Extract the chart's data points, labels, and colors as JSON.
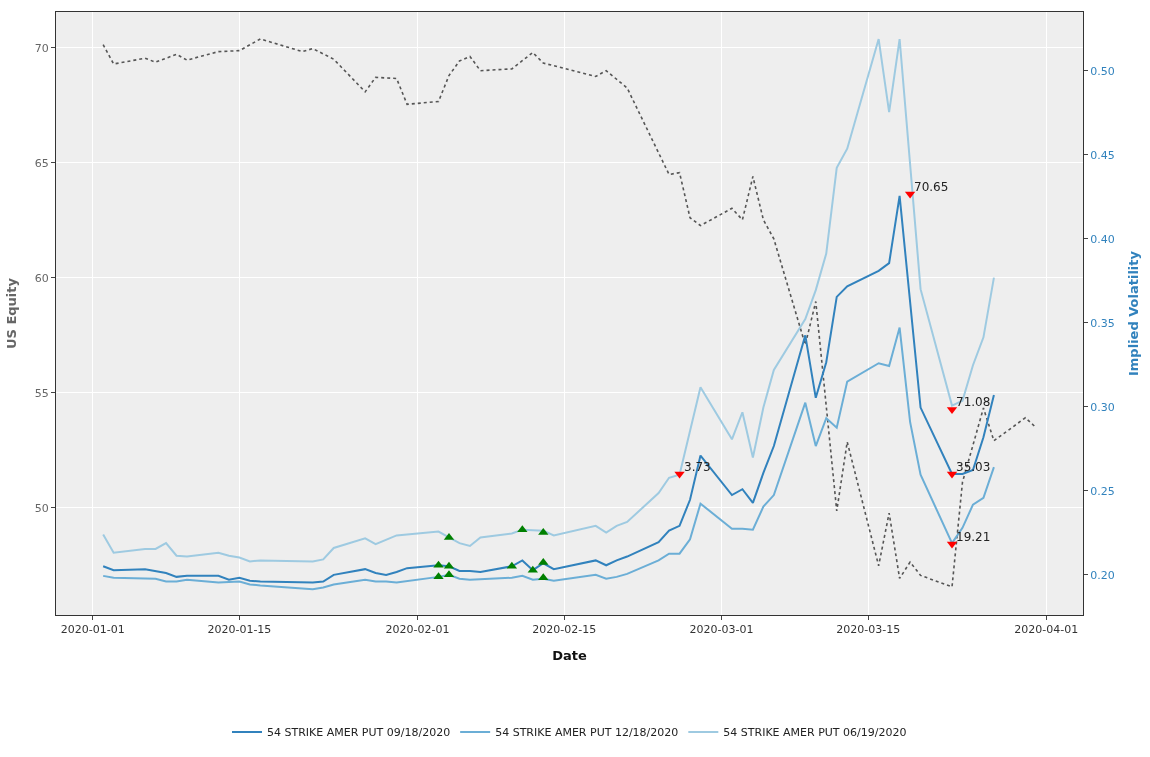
{
  "chart_data": {
    "type": "line",
    "xlabel": "Date",
    "ylabel": "US Equity",
    "y2label": "Implied Volatility",
    "xlim": [
      "2019-12-28T12:00",
      "2020-04-04T12:00"
    ],
    "xticks": [
      "2020-01-01",
      "2020-01-15",
      "2020-02-01",
      "2020-02-15",
      "2020-03-01",
      "2020-03-15",
      "2020-04-01"
    ],
    "ylim": [
      45.35,
      71.55
    ],
    "yticks": [
      50,
      55,
      60,
      65,
      70
    ],
    "y2lim": [
      0.176,
      0.535
    ],
    "y2ticks": [
      {
        "value": 0.2,
        "label": "0.20"
      },
      {
        "value": 0.25,
        "label": "0.25"
      },
      {
        "value": 0.3,
        "label": "0.30"
      },
      {
        "value": 0.35,
        "label": "0.35"
      },
      {
        "value": 0.4,
        "label": "0.40"
      },
      {
        "value": 0.45,
        "label": "0.45"
      },
      {
        "value": 0.5,
        "label": "0.50"
      }
    ],
    "grid": true,
    "legend": "bottom",
    "series": [
      {
        "color": "#555555",
        "line_style": "dotted",
        "x": [
          "2020-01-02",
          "2020-01-03",
          "2020-01-06",
          "2020-01-07",
          "2020-01-09",
          "2020-01-10",
          "2020-01-13",
          "2020-01-15",
          "2020-01-17",
          "2020-01-21",
          "2020-01-22",
          "2020-01-24",
          "2020-01-27",
          "2020-01-28",
          "2020-01-30",
          "2020-01-31",
          "2020-02-03",
          "2020-02-04",
          "2020-02-05",
          "2020-02-06",
          "2020-02-07",
          "2020-02-10",
          "2020-02-12",
          "2020-02-13",
          "2020-02-18",
          "2020-02-19",
          "2020-02-21",
          "2020-02-25",
          "2020-02-26",
          "2020-02-27",
          "2020-02-28",
          "2020-03-02",
          "2020-03-03",
          "2020-03-04",
          "2020-03-05",
          "2020-03-06",
          "2020-03-09",
          "2020-03-10",
          "2020-03-12",
          "2020-03-13",
          "2020-03-16",
          "2020-03-17",
          "2020-03-18",
          "2020-03-19",
          "2020-03-20",
          "2020-03-23",
          "2020-03-24",
          "2020-03-26",
          "2020-03-27",
          "2020-03-30",
          "2020-03-31"
        ],
        "values": [
          70.13,
          69.29,
          69.54,
          69.37,
          69.71,
          69.46,
          69.83,
          69.87,
          70.38,
          69.83,
          69.96,
          69.5,
          68.08,
          68.71,
          68.66,
          67.54,
          67.66,
          68.79,
          69.42,
          69.62,
          69.0,
          69.08,
          69.79,
          69.33,
          68.75,
          69.0,
          68.25,
          64.49,
          64.57,
          62.61,
          62.27,
          63.02,
          62.52,
          64.4,
          62.52,
          61.69,
          57.09,
          58.97,
          49.87,
          52.87,
          47.49,
          49.78,
          46.94,
          47.65,
          47.07,
          46.57,
          51.12,
          54.34,
          52.92,
          53.92,
          53.5
        ]
      },
      {
        "name": "54 STRIKE AMER PUT 09/18/2020",
        "color": "#3182bd",
        "axis": "y2",
        "x": [
          "2020-01-02",
          "2020-01-03",
          "2020-01-06",
          "2020-01-08",
          "2020-01-09",
          "2020-01-10",
          "2020-01-13",
          "2020-01-14",
          "2020-01-15",
          "2020-01-16",
          "2020-01-17",
          "2020-01-22",
          "2020-01-23",
          "2020-01-24",
          "2020-01-27",
          "2020-01-28",
          "2020-01-29",
          "2020-01-30",
          "2020-01-31",
          "2020-02-03",
          "2020-02-04",
          "2020-02-05",
          "2020-02-06",
          "2020-02-07",
          "2020-02-10",
          "2020-02-11",
          "2020-02-12",
          "2020-02-13",
          "2020-02-14",
          "2020-02-18",
          "2020-02-19",
          "2020-02-20",
          "2020-02-21",
          "2020-02-24",
          "2020-02-25",
          "2020-02-26",
          "2020-02-27",
          "2020-02-28",
          "2020-03-02",
          "2020-03-03",
          "2020-03-04",
          "2020-03-05",
          "2020-03-06",
          "2020-03-09",
          "2020-03-10",
          "2020-03-11",
          "2020-03-12",
          "2020-03-13",
          "2020-03-16",
          "2020-03-17",
          "2020-03-18",
          "2020-03-20",
          "2020-03-23",
          "2020-03-24",
          "2020-03-25",
          "2020-03-26",
          "2020-03-27"
        ],
        "values": [
          0.205,
          0.2027,
          0.2033,
          0.201,
          0.1987,
          0.1993,
          0.1993,
          0.197,
          0.1982,
          0.1964,
          0.1959,
          0.1953,
          0.1959,
          0.1999,
          0.2033,
          0.201,
          0.1999,
          0.2016,
          0.2039,
          0.2056,
          0.205,
          0.2022,
          0.2022,
          0.2016,
          0.205,
          0.2085,
          0.2027,
          0.2068,
          0.2033,
          0.2085,
          0.2056,
          0.2085,
          0.2108,
          0.2194,
          0.2262,
          0.2291,
          0.2446,
          0.2709,
          0.2474,
          0.2509,
          0.2428,
          0.2606,
          0.2766,
          0.3425,
          0.3053,
          0.3265,
          0.3654,
          0.3717,
          0.3809,
          0.3855,
          0.4255,
          0.2995,
          0.26,
          0.26,
          0.2623,
          0.2818,
          0.307
        ]
      },
      {
        "name": "54 STRIKE AMER PUT 12/18/2020",
        "color": "#6baed6",
        "axis": "y2",
        "x": [
          "2020-01-02",
          "2020-01-03",
          "2020-01-07",
          "2020-01-08",
          "2020-01-09",
          "2020-01-10",
          "2020-01-13",
          "2020-01-15",
          "2020-01-16",
          "2020-01-17",
          "2020-01-22",
          "2020-01-23",
          "2020-01-24",
          "2020-01-27",
          "2020-01-28",
          "2020-01-29",
          "2020-01-30",
          "2020-02-03",
          "2020-02-04",
          "2020-02-05",
          "2020-02-06",
          "2020-02-10",
          "2020-02-11",
          "2020-02-12",
          "2020-02-13",
          "2020-02-14",
          "2020-02-18",
          "2020-02-19",
          "2020-02-20",
          "2020-02-21",
          "2020-02-24",
          "2020-02-25",
          "2020-02-26",
          "2020-02-27",
          "2020-02-28",
          "2020-03-02",
          "2020-03-03",
          "2020-03-04",
          "2020-03-05",
          "2020-03-06",
          "2020-03-09",
          "2020-03-10",
          "2020-03-11",
          "2020-03-12",
          "2020-03-13",
          "2020-03-16",
          "2020-03-17",
          "2020-03-18",
          "2020-03-19",
          "2020-03-20",
          "2020-03-23",
          "2020-03-24",
          "2020-03-25",
          "2020-03-26",
          "2020-03-27"
        ],
        "values": [
          0.1993,
          0.1982,
          0.1976,
          0.1959,
          0.1959,
          0.197,
          0.1953,
          0.1959,
          0.1942,
          0.1936,
          0.1913,
          0.1924,
          0.1942,
          0.197,
          0.1959,
          0.1959,
          0.1953,
          0.1987,
          0.1999,
          0.1976,
          0.197,
          0.1982,
          0.1993,
          0.197,
          0.1976,
          0.1964,
          0.1999,
          0.1976,
          0.1987,
          0.2005,
          0.2085,
          0.2125,
          0.2125,
          0.2211,
          0.2423,
          0.2274,
          0.2274,
          0.2268,
          0.2405,
          0.2474,
          0.3024,
          0.2766,
          0.2932,
          0.2875,
          0.315,
          0.3259,
          0.3242,
          0.3471,
          0.291,
          0.2595,
          0.2188,
          0.2279,
          0.2417,
          0.2457,
          0.264
        ]
      },
      {
        "name": "54 STRIKE AMER PUT 06/19/2020",
        "color": "#9ecae1",
        "axis": "y2",
        "x": [
          "2020-01-02",
          "2020-01-03",
          "2020-01-06",
          "2020-01-07",
          "2020-01-08",
          "2020-01-09",
          "2020-01-10",
          "2020-01-13",
          "2020-01-14",
          "2020-01-15",
          "2020-01-16",
          "2020-01-17",
          "2020-01-22",
          "2020-01-23",
          "2020-01-24",
          "2020-01-27",
          "2020-01-28",
          "2020-01-30",
          "2020-02-03",
          "2020-02-04",
          "2020-02-05",
          "2020-02-06",
          "2020-02-07",
          "2020-02-10",
          "2020-02-11",
          "2020-02-13",
          "2020-02-14",
          "2020-02-18",
          "2020-02-19",
          "2020-02-20",
          "2020-02-21",
          "2020-02-24",
          "2020-02-25",
          "2020-02-26",
          "2020-02-28",
          "2020-03-02",
          "2020-03-03",
          "2020-03-04",
          "2020-03-05",
          "2020-03-06",
          "2020-03-09",
          "2020-03-10",
          "2020-03-11",
          "2020-03-12",
          "2020-03-13",
          "2020-03-16",
          "2020-03-17",
          "2020-03-18",
          "2020-03-20",
          "2020-03-23",
          "2020-03-24",
          "2020-03-25",
          "2020-03-26",
          "2020-03-27"
        ],
        "values": [
          0.2239,
          0.2131,
          0.2153,
          0.2153,
          0.2188,
          0.2113,
          0.2108,
          0.2131,
          0.2113,
          0.2102,
          0.2079,
          0.2085,
          0.2079,
          0.2091,
          0.2159,
          0.2216,
          0.2182,
          0.2234,
          0.2257,
          0.2222,
          0.2188,
          0.2171,
          0.2222,
          0.2245,
          0.2268,
          0.2262,
          0.2234,
          0.2291,
          0.2251,
          0.2291,
          0.2314,
          0.2486,
          0.2577,
          0.2595,
          0.3116,
          0.2806,
          0.2967,
          0.2698,
          0.2995,
          0.3219,
          0.3522,
          0.3694,
          0.3912,
          0.4422,
          0.4536,
          0.5189,
          0.4754,
          0.5189,
          0.37,
          0.3007,
          0.3036,
          0.3247,
          0.3413,
          0.3769
        ]
      },
      {
        "type": "scatter",
        "marker": "triangle",
        "color": "#008000",
        "axis": "y2",
        "x": [
          "2020-02-03",
          "2020-02-04",
          "2020-02-03",
          "2020-02-04",
          "2020-02-04",
          "2020-02-10",
          "2020-02-11",
          "2020-02-12",
          "2020-02-13",
          "2020-02-13",
          "2020-02-13"
        ],
        "values": [
          0.2056,
          0.205,
          0.1987,
          0.1999,
          0.2222,
          0.205,
          0.2268,
          0.2027,
          0.2073,
          0.2251,
          0.1982
        ]
      },
      {
        "type": "scatter",
        "marker": "triangle-down",
        "color": "#ff0000",
        "axis": "y2",
        "x": [
          "2020-02-26",
          "2020-03-19",
          "2020-03-23",
          "2020-03-23",
          "2020-03-23"
        ],
        "values": [
          0.26,
          0.4267,
          0.2984,
          0.26,
          0.2182
        ]
      }
    ],
    "annotations": [
      "3.73",
      "70.65",
      "71.08",
      "35.03",
      "19.21"
    ]
  }
}
